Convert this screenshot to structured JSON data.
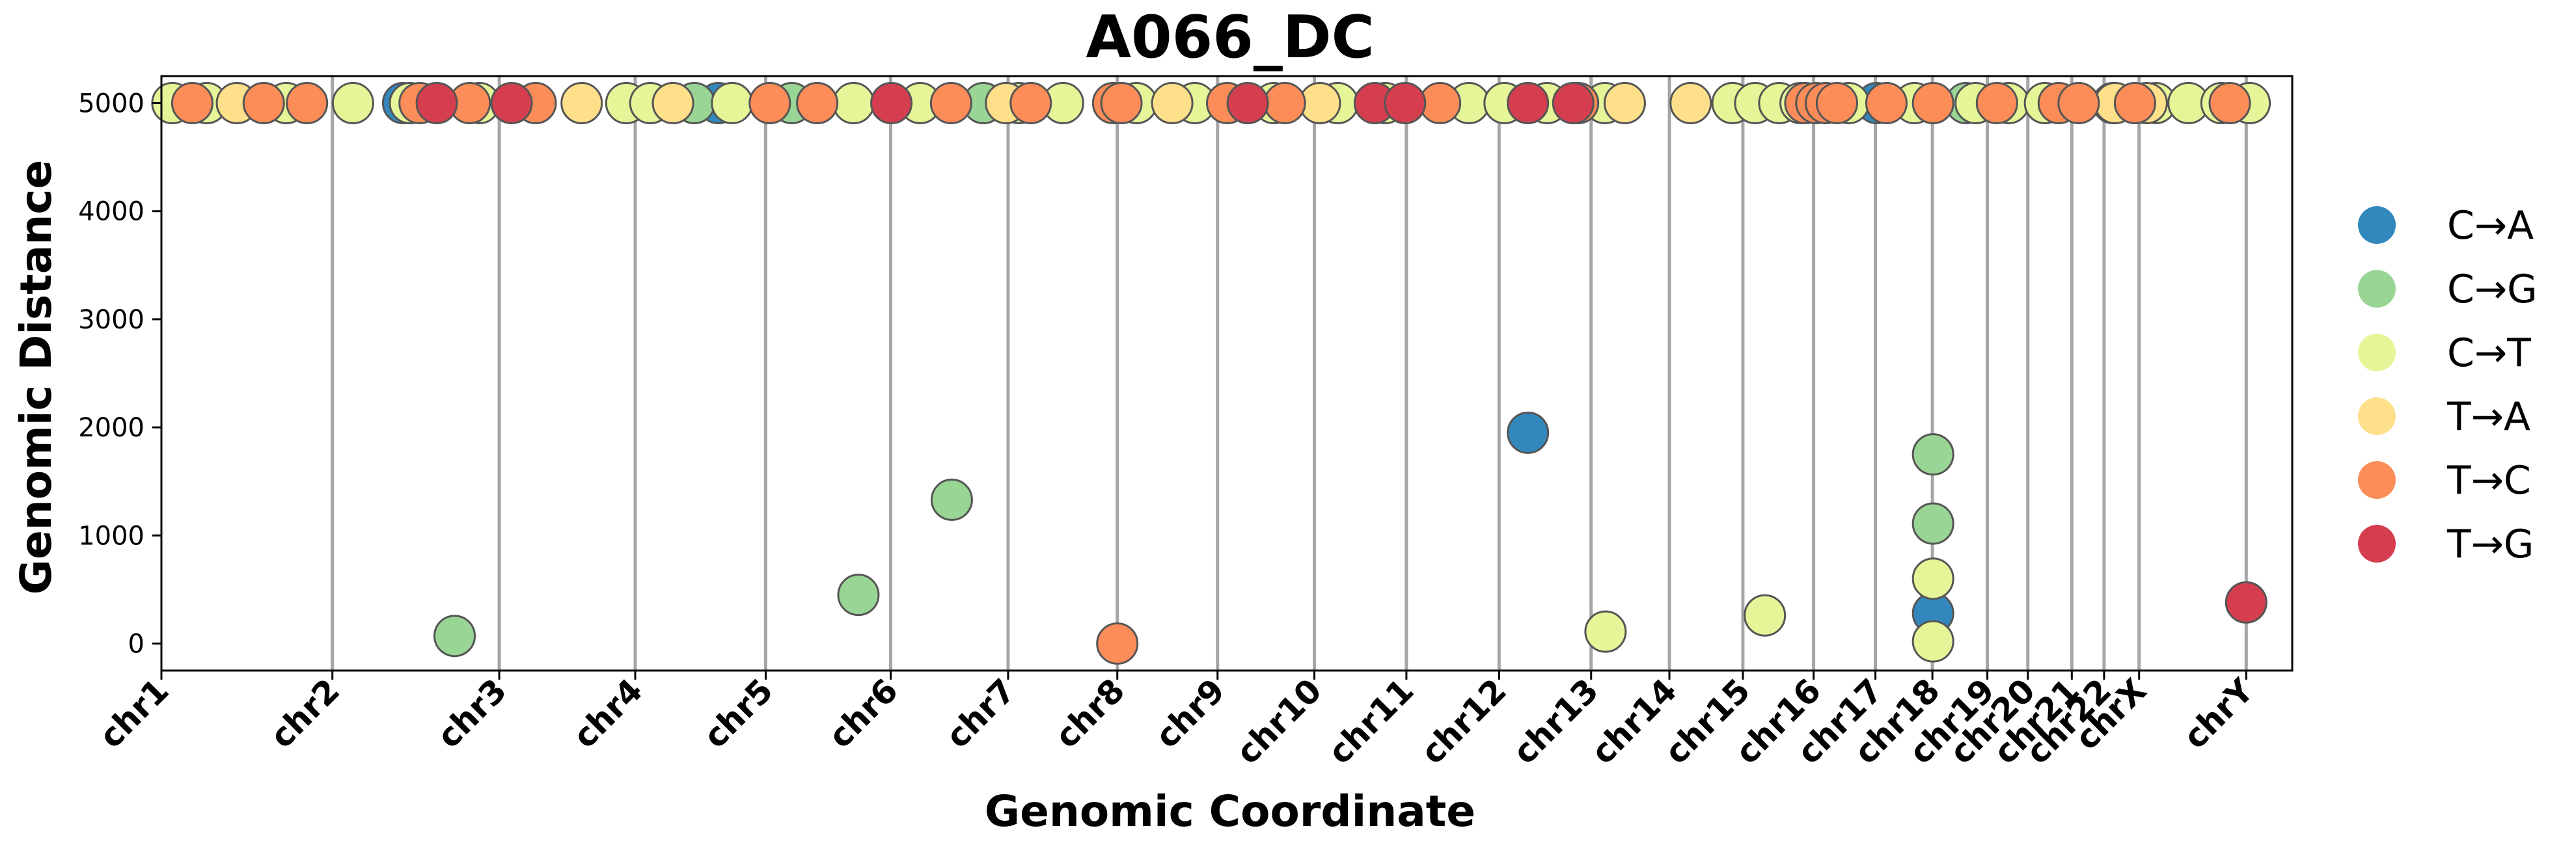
{
  "chart_data": {
    "type": "scatter",
    "title": "A066_DC",
    "xlabel": "Genomic Coordinate",
    "ylabel": "Genomic Distance",
    "ylim": [
      -250,
      5250
    ],
    "yticks": [
      0,
      1000,
      2000,
      3000,
      4000,
      5000
    ],
    "ytick_labels": [
      "0",
      "1000",
      "2000",
      "3000",
      "4000",
      "5000"
    ],
    "xlim": [
      0,
      3103
    ],
    "grid": false,
    "legend_position": "right",
    "boundaries": [
      {
        "label": "chr1",
        "x": 0
      },
      {
        "label": "chr2",
        "x": 249
      },
      {
        "label": "chr3",
        "x": 492
      },
      {
        "label": "chr4",
        "x": 690
      },
      {
        "label": "chr5",
        "x": 880
      },
      {
        "label": "chr6",
        "x": 1062
      },
      {
        "label": "chr7",
        "x": 1233
      },
      {
        "label": "chr8",
        "x": 1392
      },
      {
        "label": "chr9",
        "x": 1538
      },
      {
        "label": "chr10",
        "x": 1679
      },
      {
        "label": "chr11",
        "x": 1813
      },
      {
        "label": "chr12",
        "x": 1948
      },
      {
        "label": "chr13",
        "x": 2082
      },
      {
        "label": "chr14",
        "x": 2196
      },
      {
        "label": "chr15",
        "x": 2303
      },
      {
        "label": "chr16",
        "x": 2406
      },
      {
        "label": "chr17",
        "x": 2496
      },
      {
        "label": "chr18",
        "x": 2579
      },
      {
        "label": "chr19",
        "x": 2659
      },
      {
        "label": "chr20",
        "x": 2718
      },
      {
        "label": "chr21",
        "x": 2782
      },
      {
        "label": "chr22",
        "x": 2829
      },
      {
        "label": "chrX",
        "x": 2880
      },
      {
        "label": "chrY",
        "x": 3036
      }
    ],
    "series": [
      {
        "name": "C→A",
        "color": "#3288bd",
        "points": [
          [
            352,
            5000
          ],
          [
            811,
            5000
          ],
          [
            2498,
            5000
          ],
          [
            1990,
            1950
          ],
          [
            2580,
            280
          ]
        ]
      },
      {
        "name": "C→G",
        "color": "#99d594",
        "points": [
          [
            427,
            70
          ],
          [
            1015,
            450
          ],
          [
            1151,
            1330
          ],
          [
            2580,
            1750
          ],
          [
            2580,
            1110
          ],
          [
            776,
            5000
          ],
          [
            918,
            5000
          ],
          [
            1197,
            5000
          ],
          [
            2628,
            5000
          ]
        ]
      },
      {
        "name": "C→T",
        "color": "#e6f598",
        "points": [
          [
            16,
            5000
          ],
          [
            66,
            5000
          ],
          [
            182,
            5000
          ],
          [
            279,
            5000
          ],
          [
            362,
            5000
          ],
          [
            463,
            5000
          ],
          [
            677,
            5000
          ],
          [
            712,
            5000
          ],
          [
            831,
            5000
          ],
          [
            1008,
            5000
          ],
          [
            1105,
            5000
          ],
          [
            1249,
            5000
          ],
          [
            1313,
            5000
          ],
          [
            1420,
            5000
          ],
          [
            1505,
            5000
          ],
          [
            1620,
            5000
          ],
          [
            1713,
            5000
          ],
          [
            1782,
            5000
          ],
          [
            1904,
            5000
          ],
          [
            1956,
            5000
          ],
          [
            2018,
            5000
          ],
          [
            2102,
            5000
          ],
          [
            2288,
            5000
          ],
          [
            2321,
            5000
          ],
          [
            2356,
            5000
          ],
          [
            2387,
            5000
          ],
          [
            2457,
            5000
          ],
          [
            2553,
            5000
          ],
          [
            2642,
            5000
          ],
          [
            2690,
            5000
          ],
          [
            2743,
            5000
          ],
          [
            2842,
            5000
          ],
          [
            2904,
            5000
          ],
          [
            2952,
            5000
          ],
          [
            3000,
            5000
          ],
          [
            3041,
            5000
          ],
          [
            2103,
            110
          ],
          [
            2335,
            260
          ],
          [
            2580,
            600
          ],
          [
            2580,
            20
          ]
        ]
      },
      {
        "name": "T→A",
        "color": "#fee08b",
        "points": [
          [
            110,
            5000
          ],
          [
            612,
            5000
          ],
          [
            745,
            5000
          ],
          [
            1230,
            5000
          ],
          [
            1472,
            5000
          ],
          [
            1687,
            5000
          ],
          [
            2131,
            5000
          ],
          [
            2227,
            5000
          ],
          [
            2845,
            5000
          ],
          [
            2891,
            5000
          ]
        ]
      },
      {
        "name": "T→C",
        "color": "#fc8d59",
        "points": [
          [
            45,
            5000
          ],
          [
            149,
            5000
          ],
          [
            212,
            5000
          ],
          [
            376,
            5000
          ],
          [
            449,
            5000
          ],
          [
            545,
            5000
          ],
          [
            886,
            5000
          ],
          [
            955,
            5000
          ],
          [
            1150,
            5000
          ],
          [
            1266,
            5000
          ],
          [
            1386,
            5000
          ],
          [
            1398,
            5000
          ],
          [
            1552,
            5000
          ],
          [
            1636,
            5000
          ],
          [
            1862,
            5000
          ],
          [
            2063,
            5000
          ],
          [
            2394,
            5000
          ],
          [
            2410,
            5000
          ],
          [
            2424,
            5000
          ],
          [
            2440,
            5000
          ],
          [
            2512,
            5000
          ],
          [
            2580,
            5000
          ],
          [
            2673,
            5000
          ],
          [
            2763,
            5000
          ],
          [
            2792,
            5000
          ],
          [
            2874,
            5000
          ],
          [
            3012,
            5000
          ],
          [
            1392,
            0
          ]
        ]
      },
      {
        "name": "T→G",
        "color": "#d53e4f",
        "points": [
          [
            401,
            5000
          ],
          [
            510,
            5000
          ],
          [
            1063,
            5000
          ],
          [
            1582,
            5000
          ],
          [
            1767,
            5000
          ],
          [
            1811,
            5000
          ],
          [
            1990,
            5000
          ],
          [
            2056,
            5000
          ],
          [
            3036,
            380
          ]
        ]
      }
    ]
  }
}
